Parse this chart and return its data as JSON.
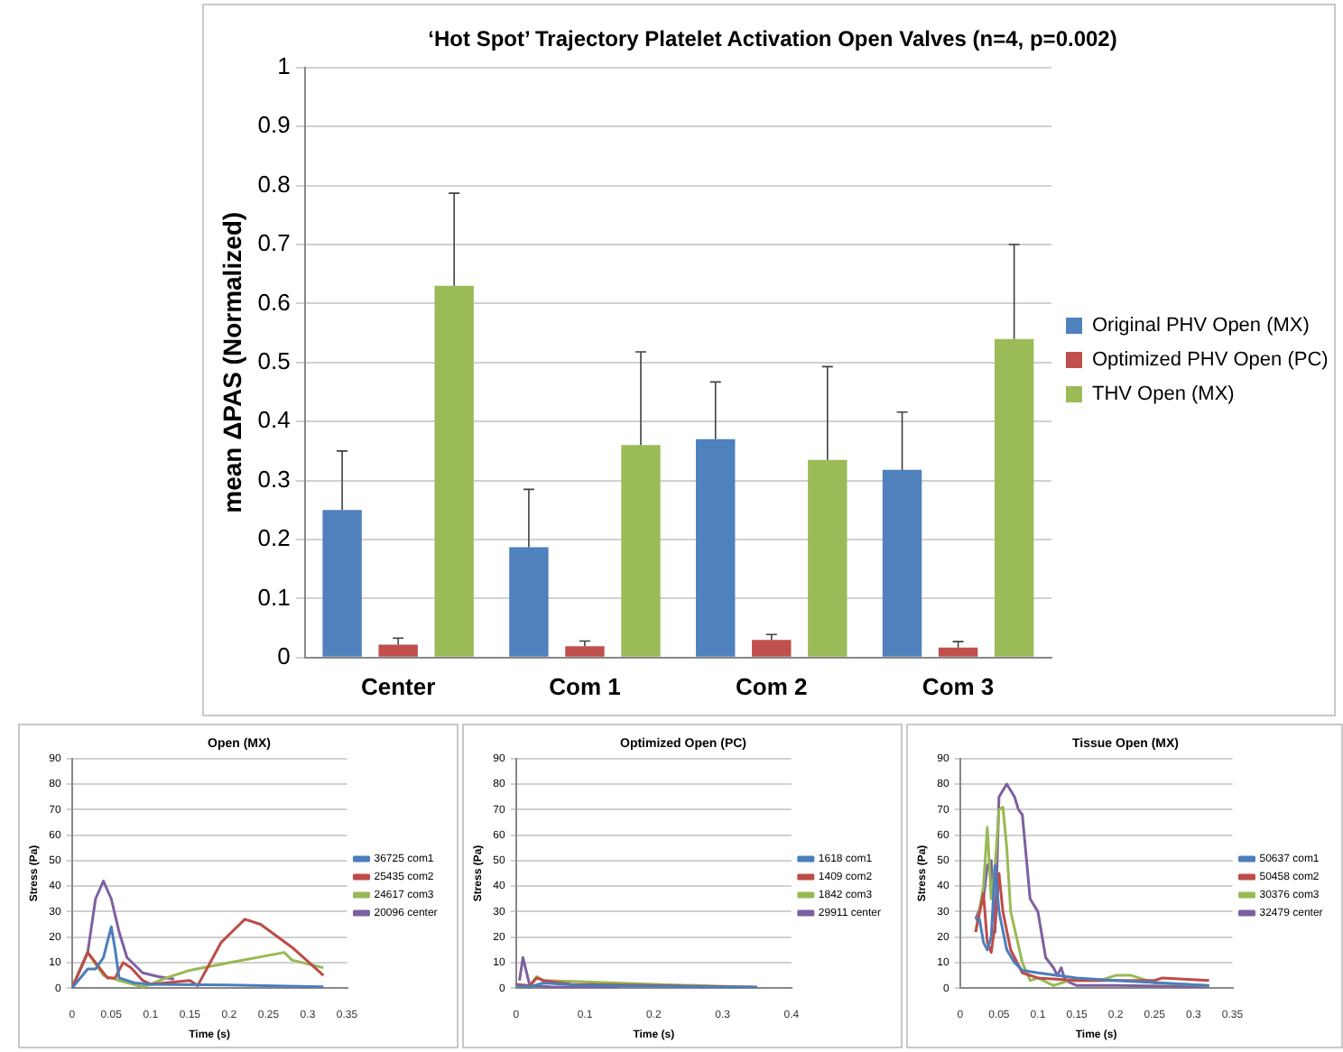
{
  "chart_data": [
    {
      "type": "bar",
      "title": "‘Hot Spot’ Trajectory Platelet Activation Open Valves (n=4, p=0.002)",
      "ylabel": "mean ΔPAS (Normalized)",
      "categories": [
        "Center",
        "Com 1",
        "Com 2",
        "Com 3"
      ],
      "ylim": [
        0,
        1
      ],
      "yticks": [
        0,
        0.1,
        0.2,
        0.3,
        0.4,
        0.5,
        0.6,
        0.7,
        0.8,
        0.9,
        1
      ],
      "grid": "y",
      "legend": "right",
      "series": [
        {
          "name": "Original PHV Open (MX)",
          "color": "#4f81bd",
          "values": [
            0.25,
            0.187,
            0.37,
            0.318
          ],
          "errors": [
            [
              0.25,
              0.35
            ],
            [
              0.187,
              0.285
            ],
            [
              0.37,
              0.467
            ],
            [
              0.318,
              0.416
            ]
          ]
        },
        {
          "name": "Optimized PHV Open (PC)",
          "color": "#c0504d",
          "values": [
            0.022,
            0.019,
            0.03,
            0.017
          ],
          "errors": [
            [
              0.022,
              0.033
            ],
            [
              0.019,
              0.028
            ],
            [
              0.03,
              0.039
            ],
            [
              0.017,
              0.027
            ]
          ]
        },
        {
          "name": "THV Open (MX)",
          "color": "#9bbb59",
          "values": [
            0.63,
            0.36,
            0.335,
            0.54
          ],
          "errors": [
            [
              0.63,
              0.787
            ],
            [
              0.36,
              0.518
            ],
            [
              0.335,
              0.493
            ],
            [
              0.54,
              0.7
            ]
          ]
        }
      ]
    },
    {
      "type": "line",
      "title": "Open (MX)",
      "xlabel": "Time (s)",
      "ylabel": "Stress (Pa)",
      "xlim": [
        0,
        0.35
      ],
      "xticks": [
        0,
        0.05,
        0.1,
        0.15,
        0.2,
        0.25,
        0.3,
        0.35
      ],
      "ylim": [
        0,
        90
      ],
      "yticks": [
        0,
        10,
        20,
        30,
        40,
        50,
        60,
        70,
        80,
        90
      ],
      "grid": "y",
      "legend": "right",
      "marker": "none",
      "series": [
        {
          "name": "36725 com1",
          "color": "#4a7ebb",
          "x": [
            0,
            0.02,
            0.03,
            0.04,
            0.05,
            0.055,
            0.06,
            0.08,
            0.1,
            0.2,
            0.32
          ],
          "values": [
            0,
            7.5,
            7.5,
            12,
            24,
            15,
            4,
            2,
            1.5,
            1.2,
            0.5
          ]
        },
        {
          "name": "25435 com2",
          "color": "#be4b48",
          "x": [
            0,
            0.02,
            0.03,
            0.045,
            0.055,
            0.065,
            0.075,
            0.09,
            0.1,
            0.15,
            0.16,
            0.19,
            0.22,
            0.24,
            0.28,
            0.32
          ],
          "values": [
            0,
            14,
            10,
            4,
            4,
            10,
            8,
            3,
            1.5,
            3,
            1,
            18,
            27,
            25,
            16,
            5
          ]
        },
        {
          "name": "24617 com3",
          "color": "#98b954",
          "x": [
            0,
            0.02,
            0.04,
            0.06,
            0.09,
            0.1,
            0.12,
            0.15,
            0.2,
            0.27,
            0.28,
            0.32
          ],
          "values": [
            0,
            14,
            5,
            3,
            0.5,
            1.5,
            4,
            7,
            10,
            14,
            11,
            8
          ]
        },
        {
          "name": "20096 center",
          "color": "#7d60a0",
          "x": [
            0,
            0.02,
            0.03,
            0.04,
            0.05,
            0.06,
            0.07,
            0.09,
            0.11,
            0.13
          ],
          "values": [
            0,
            14,
            35,
            42,
            35,
            22,
            12,
            6,
            4.5,
            3.5
          ]
        }
      ]
    },
    {
      "type": "line",
      "title": "Optimized Open (PC)",
      "xlabel": "Time (s)",
      "ylabel": "Stress (Pa)",
      "xlim": [
        0,
        0.4
      ],
      "xticks": [
        0,
        0.1,
        0.2,
        0.3,
        0.4
      ],
      "ylim": [
        0,
        90
      ],
      "yticks": [
        0,
        10,
        20,
        30,
        40,
        50,
        60,
        70,
        80,
        90
      ],
      "grid": "y",
      "legend": "right",
      "marker": "none",
      "series": [
        {
          "name": "1618 com1",
          "color": "#4a7ebb",
          "x": [
            0,
            0.02,
            0.04,
            0.1,
            0.2,
            0.35
          ],
          "values": [
            1,
            0.5,
            2,
            1,
            0.8,
            0.3
          ]
        },
        {
          "name": "1409 com2",
          "color": "#be4b48",
          "x": [
            0,
            0.02,
            0.03,
            0.04,
            0.08,
            0.2,
            0.35
          ],
          "values": [
            1.5,
            1,
            4,
            3,
            1.5,
            1,
            0.3
          ]
        },
        {
          "name": "1842 com3",
          "color": "#98b954",
          "x": [
            0.02,
            0.03,
            0.04,
            0.1,
            0.2,
            0.35
          ],
          "values": [
            1,
            4.5,
            3,
            2.5,
            1.5,
            0.3
          ]
        },
        {
          "name": "29911 center",
          "color": "#7d60a0",
          "x": [
            0.005,
            0.01,
            0.02,
            0.05,
            0.1,
            0.15
          ],
          "values": [
            3,
            12,
            1,
            0.5,
            0.3,
            0.2
          ]
        }
      ]
    },
    {
      "type": "line",
      "title": "Tissue Open (MX)",
      "xlabel": "Time (s)",
      "ylabel": "Stress (Pa)",
      "xlim": [
        0,
        0.35
      ],
      "xticks": [
        0,
        0.05,
        0.1,
        0.15,
        0.2,
        0.25,
        0.3,
        0.35
      ],
      "ylim": [
        0,
        90
      ],
      "yticks": [
        0,
        10,
        20,
        30,
        40,
        50,
        60,
        70,
        80,
        90
      ],
      "grid": "y",
      "legend": "right",
      "marker": "none",
      "series": [
        {
          "name": "50637 com1",
          "color": "#4a7ebb",
          "x": [
            0.02,
            0.025,
            0.03,
            0.035,
            0.04,
            0.045,
            0.05,
            0.06,
            0.07,
            0.08,
            0.1,
            0.15,
            0.2,
            0.32
          ],
          "values": [
            27,
            27,
            18,
            15,
            20,
            48,
            30,
            15,
            10,
            7,
            6,
            4,
            3,
            1
          ]
        },
        {
          "name": "50458 com2",
          "color": "#be4b48",
          "x": [
            0.02,
            0.03,
            0.035,
            0.04,
            0.045,
            0.05,
            0.055,
            0.065,
            0.08,
            0.1,
            0.15,
            0.25,
            0.26,
            0.32
          ],
          "values": [
            22,
            37,
            18,
            14,
            25,
            45,
            30,
            15,
            6,
            4,
            3,
            3,
            4,
            3
          ]
        },
        {
          "name": "30376 com3",
          "color": "#98b954",
          "x": [
            0.02,
            0.03,
            0.035,
            0.04,
            0.045,
            0.05,
            0.055,
            0.06,
            0.065,
            0.08,
            0.09,
            0.1,
            0.12,
            0.14,
            0.18,
            0.2,
            0.22,
            0.25,
            0.32
          ],
          "values": [
            22,
            40,
            63,
            35,
            48,
            70,
            71,
            55,
            30,
            10,
            3,
            4,
            1,
            3,
            3,
            5,
            5,
            2,
            1
          ]
        },
        {
          "name": "32479 center",
          "color": "#7d60a0",
          "x": [
            0.02,
            0.03,
            0.035,
            0.04,
            0.045,
            0.05,
            0.06,
            0.07,
            0.075,
            0.08,
            0.09,
            0.1,
            0.11,
            0.12,
            0.125,
            0.13,
            0.135,
            0.15,
            0.2,
            0.32
          ],
          "values": [
            27,
            35,
            48,
            50,
            22,
            75,
            80,
            75,
            70,
            68,
            35,
            30,
            12,
            8,
            5,
            8,
            3,
            1,
            1,
            0.5
          ]
        }
      ]
    }
  ]
}
